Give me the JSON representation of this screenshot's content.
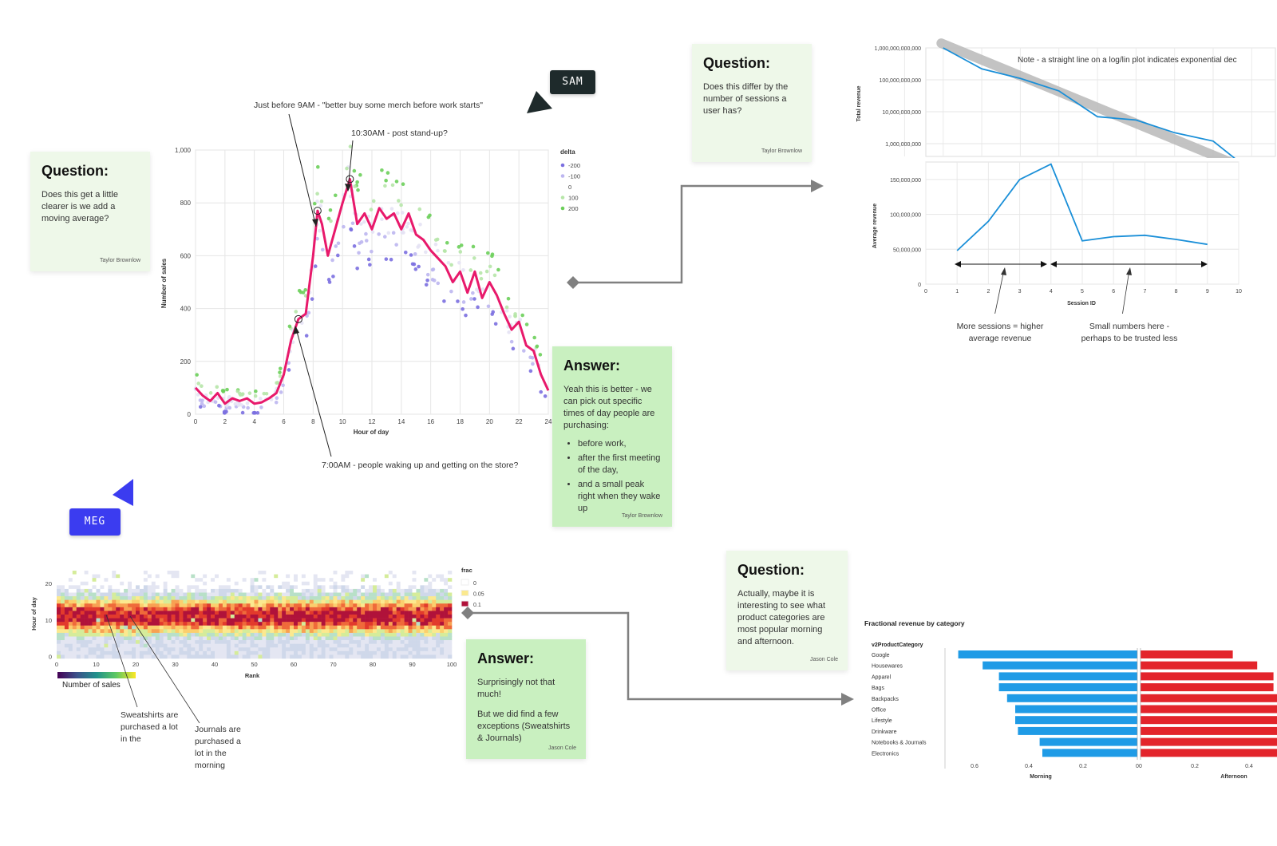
{
  "colors": {
    "question_bg": "#eef8e9",
    "answer_bg": "#c9f0c0",
    "moving_avg": "#e8196b",
    "delta_neg": "#7b6fe0",
    "delta_pos": "#6ccf5a",
    "line_blue": "#1a8fd8",
    "bar_morning": "#1f9be6",
    "bar_afternoon": "#e3242b",
    "sam_tag": "#1e2a2b",
    "meg_tag": "#3b3cf0"
  },
  "cursors": {
    "sam": {
      "label": "SAM",
      "icon": "cursor-arrow-icon"
    },
    "meg": {
      "label": "MEG",
      "icon": "cursor-arrow-icon"
    }
  },
  "notes": {
    "q1": {
      "title": "Question:",
      "body": "Does this get a little clearer is we add a moving average?",
      "author": "Taylor Brownlow"
    },
    "q2": {
      "title": "Question:",
      "body": "Does this differ by the number of sessions a user has?",
      "author": "Taylor Brownlow"
    },
    "a1": {
      "title": "Answer:",
      "body": "Yeah this is better - we can pick out specific times of day people are purchasing:",
      "bullets": [
        "before work,",
        "after the first meeting of the day,",
        "and a small peak right when they wake up"
      ],
      "author": "Taylor Brownlow"
    },
    "q3": {
      "title": "Question:",
      "body": "Actually, maybe it is interesting to see what product categories are most popular morning and afternoon.",
      "author": "Jason Cole"
    },
    "a2": {
      "title": "Answer:",
      "body1": "Surprisingly not that much!",
      "body2": "But we did find a few exceptions (Sweatshirts & Journals)",
      "author": "Jason Cole"
    }
  },
  "annotations": {
    "nine_am": "Just before 9AM - \"better buy some merch before work starts\"",
    "ten_thirty": "10:30AM - post stand-up?",
    "seven_am": "7:00AM - people waking up and getting on the store?",
    "more_sessions": "More sessions = higher average revenue",
    "small_numbers": "Small numbers here - perhaps to be trusted less",
    "loglin_note": "Note - a straight line on a log/lin plot indicates exponential dec",
    "sweatshirts": "Sweatshirts are purchased a lot in the",
    "journals": "Journals are purchased a lot in the morning"
  },
  "chart_data": [
    {
      "type": "scatter",
      "xlabel": "Hour of day",
      "ylabel": "Number of sales",
      "xlim": [
        0,
        24
      ],
      "ylim": [
        0,
        1000
      ],
      "x_ticks": [
        "0",
        "2",
        "4",
        "6",
        "8",
        "10",
        "12",
        "14",
        "16",
        "18",
        "20",
        "22",
        "24"
      ],
      "y_ticks": [
        "0",
        "200",
        "400",
        "600",
        "800",
        "1,000"
      ],
      "legend_title": "delta",
      "legend": [
        "-200",
        "-100",
        "0",
        "100",
        "200"
      ],
      "moving_average": {
        "x": [
          0,
          0.5,
          1,
          1.5,
          2,
          2.5,
          3,
          3.5,
          4,
          4.5,
          5,
          5.5,
          6,
          6.5,
          7,
          7.5,
          8,
          8.3,
          8.6,
          9,
          9.5,
          10,
          10.5,
          11,
          11.5,
          12,
          12.5,
          13,
          13.5,
          14,
          14.5,
          15,
          15.5,
          16,
          16.5,
          17,
          17.5,
          18,
          18.5,
          19,
          19.5,
          20,
          20.5,
          21,
          21.5,
          22,
          22.5,
          23,
          23.5,
          24
        ],
        "y": [
          100,
          70,
          50,
          80,
          40,
          60,
          50,
          60,
          40,
          45,
          60,
          80,
          150,
          280,
          360,
          380,
          600,
          770,
          720,
          600,
          700,
          800,
          890,
          720,
          760,
          700,
          780,
          740,
          760,
          700,
          760,
          680,
          660,
          620,
          590,
          560,
          500,
          540,
          460,
          540,
          440,
          500,
          450,
          380,
          320,
          350,
          260,
          240,
          150,
          90
        ]
      },
      "annotated_points": [
        {
          "x": 7.0,
          "y": 360
        },
        {
          "x": 8.3,
          "y": 770
        },
        {
          "x": 10.5,
          "y": 890
        }
      ]
    },
    {
      "type": "line",
      "xlabel": "Session ID",
      "ylabel": "Total revenue",
      "yscale": "log",
      "y_ticks": [
        "1,000,000,000",
        "10,000,000,000",
        "100,000,000,000",
        "1,000,000,000,000"
      ],
      "series": [
        {
          "x": [
            1,
            2,
            3,
            4,
            5,
            6,
            7,
            8,
            9
          ],
          "y": [
            1000000000000,
            220000000000,
            110000000000,
            45000000000,
            7000000000,
            5500000000,
            2200000000,
            1200000000,
            130000000
          ]
        }
      ]
    },
    {
      "type": "line",
      "xlabel": "Session ID",
      "ylabel": "Average revenue",
      "xlim": [
        0,
        10
      ],
      "ylim": [
        0,
        175000000
      ],
      "x_ticks": [
        "0",
        "1",
        "2",
        "3",
        "4",
        "5",
        "6",
        "7",
        "8",
        "9",
        "10"
      ],
      "y_ticks": [
        "0",
        "50,000,000",
        "100,000,000",
        "150,000,000"
      ],
      "series": [
        {
          "x": [
            1,
            2,
            3,
            4,
            5,
            6,
            7,
            8,
            9
          ],
          "y": [
            48000000,
            90000000,
            150000000,
            172000000,
            62000000,
            68000000,
            70000000,
            64000000,
            57000000
          ]
        }
      ]
    },
    {
      "type": "heatmap",
      "xlabel": "Rank",
      "ylabel": "Hour of day",
      "x_ticks": [
        "0",
        "10",
        "20",
        "30",
        "40",
        "50",
        "60",
        "70",
        "80",
        "90",
        "100"
      ],
      "y_ticks": [
        "0",
        "10",
        "20"
      ],
      "legend_title": "frac",
      "legend": [
        "0",
        "0.05",
        "0.1"
      ],
      "colorbar_label": "Number of sales"
    },
    {
      "type": "bar",
      "title": "Fractional revenue by category",
      "legend_title": "v2ProductCategory",
      "categories": [
        "Google",
        "Housewares",
        "Apparel",
        "Bags",
        "Backpacks",
        "Office",
        "Lifestyle",
        "Drinkware",
        "Notebooks & Journals",
        "Electronics"
      ],
      "series": [
        {
          "name": "Morning",
          "values": [
            0.66,
            0.57,
            0.51,
            0.51,
            0.48,
            0.45,
            0.45,
            0.44,
            0.36,
            0.35
          ]
        },
        {
          "name": "Afternoon",
          "values": [
            0.34,
            0.43,
            0.49,
            0.49,
            0.52,
            0.55,
            0.55,
            0.56,
            0.64,
            0.65
          ]
        }
      ],
      "morning_ticks": [
        "0.6",
        "0.4",
        "0.2",
        "0"
      ],
      "afternoon_ticks": [
        "0",
        "0.2",
        "0.4"
      ]
    }
  ]
}
